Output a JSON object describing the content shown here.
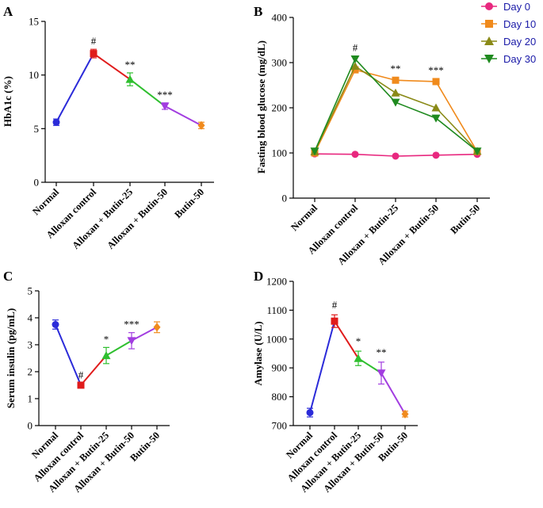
{
  "chart_data": [
    {
      "panel": "A",
      "type": "line",
      "ylabel": "HbA1c (%)",
      "ylim": [
        0,
        15
      ],
      "yticks": [
        0,
        5,
        10,
        15
      ],
      "categories": [
        "Normal",
        "Alloxan control",
        "Alloxan + Butin-25",
        "Alloxan + Butin-50",
        "Butin-50"
      ],
      "values": [
        5.6,
        12.0,
        9.6,
        7.1,
        5.3
      ],
      "errors": [
        0.3,
        0.4,
        0.6,
        0.3,
        0.3
      ],
      "significance": [
        "",
        "#",
        "**",
        "***",
        ""
      ],
      "colors": [
        "#2b2bd9",
        "#e01b1b",
        "#2fbf2f",
        "#a23de0",
        "#f08a1c"
      ]
    },
    {
      "panel": "B",
      "type": "line",
      "ylabel": "Fasting blood glucose (mg/dL)",
      "ylim": [
        0,
        400
      ],
      "yticks": [
        0,
        100,
        200,
        300,
        400
      ],
      "categories": [
        "Normal",
        "Alloxan control",
        "Alloxan + Butin-25",
        "Alloxan + Butin-50",
        "Butin-50"
      ],
      "series": [
        {
          "name": "Day 0",
          "color": "#e8287f",
          "marker": "circle",
          "values": [
            98,
            97,
            93,
            95,
            97
          ]
        },
        {
          "name": "Day 10",
          "color": "#f08a1c",
          "marker": "square",
          "values": [
            100,
            284,
            261,
            258,
            103
          ]
        },
        {
          "name": "Day 20",
          "color": "#8a8a17",
          "marker": "triangle-up",
          "values": [
            103,
            292,
            233,
            200,
            104
          ]
        },
        {
          "name": "Day 30",
          "color": "#1f8a1f",
          "marker": "triangle-down",
          "values": [
            104,
            308,
            212,
            177,
            104
          ]
        }
      ],
      "significance": [
        "",
        "#",
        "**",
        "***",
        ""
      ]
    },
    {
      "panel": "C",
      "type": "line",
      "ylabel": "Serum insulin (pg/mL)",
      "ylim": [
        0,
        5
      ],
      "yticks": [
        0,
        1,
        2,
        3,
        4,
        5
      ],
      "categories": [
        "Normal",
        "Alloxan control",
        "Alloxan + Butin-25",
        "Alloxan + Butin-50",
        "Butin-50"
      ],
      "values": [
        3.75,
        1.5,
        2.6,
        3.15,
        3.65
      ],
      "errors": [
        0.17,
        0.07,
        0.3,
        0.3,
        0.2
      ],
      "significance": [
        "",
        "#",
        "*",
        "***",
        ""
      ],
      "colors": [
        "#2b2bd9",
        "#e01b1b",
        "#2fbf2f",
        "#a23de0",
        "#f08a1c"
      ]
    },
    {
      "panel": "D",
      "type": "line",
      "ylabel": "Amylase (U/L)",
      "ylim": [
        700,
        1200
      ],
      "yticks": [
        700,
        800,
        900,
        1000,
        1100,
        1200
      ],
      "categories": [
        "Normal",
        "Alloxan control",
        "Alloxan + Butin-25",
        "Alloxan + Butin-50",
        "Butin-50"
      ],
      "values": [
        745,
        1062,
        933,
        882,
        740
      ],
      "errors": [
        15,
        22,
        25,
        38,
        10
      ],
      "significance": [
        "",
        "#",
        "*",
        "**",
        ""
      ],
      "colors": [
        "#2b2bd9",
        "#e01b1b",
        "#2fbf2f",
        "#a23de0",
        "#f08a1c"
      ]
    }
  ]
}
